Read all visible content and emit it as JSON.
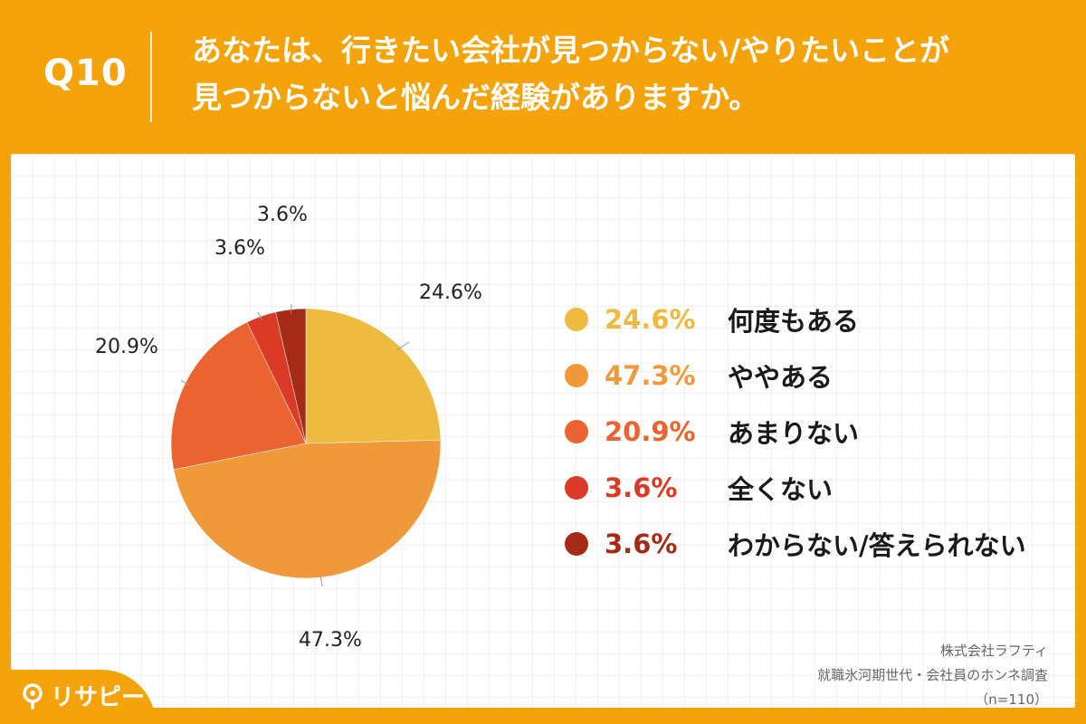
{
  "header": {
    "question_number": "Q10",
    "title_line1": "あなたは、行きたい会社が見つからない/やりたいことが",
    "title_line2": "見つからないと悩んだ経験がありますか。"
  },
  "chart_data": {
    "type": "pie",
    "title": "あなたは、行きたい会社が見つからない/やりたいことが見つからないと悩んだ経験がありますか。",
    "slices": [
      {
        "label": "何度もある",
        "value": 24.6,
        "display": "24.6%",
        "color": "#EEBB40"
      },
      {
        "label": "ややある",
        "value": 47.3,
        "display": "47.3%",
        "color": "#F0993A"
      },
      {
        "label": "あまりない",
        "value": 20.9,
        "display": "20.9%",
        "color": "#EA6330"
      },
      {
        "label": "全くない",
        "value": 3.6,
        "display": "3.6%",
        "color": "#DB3B26"
      },
      {
        "label": "わからない/答えられない",
        "value": 3.6,
        "display": "3.6%",
        "color": "#A62B17"
      }
    ],
    "legend_position": "right",
    "sample_size": "（n=110）"
  },
  "source": {
    "company": "株式会社ラフティ",
    "survey": "就職氷河期世代・会社員のホンネ調査",
    "sample": "（n=110）"
  },
  "brand": {
    "logo_text": "リサピー",
    "accent_color": "#F5A30A"
  }
}
